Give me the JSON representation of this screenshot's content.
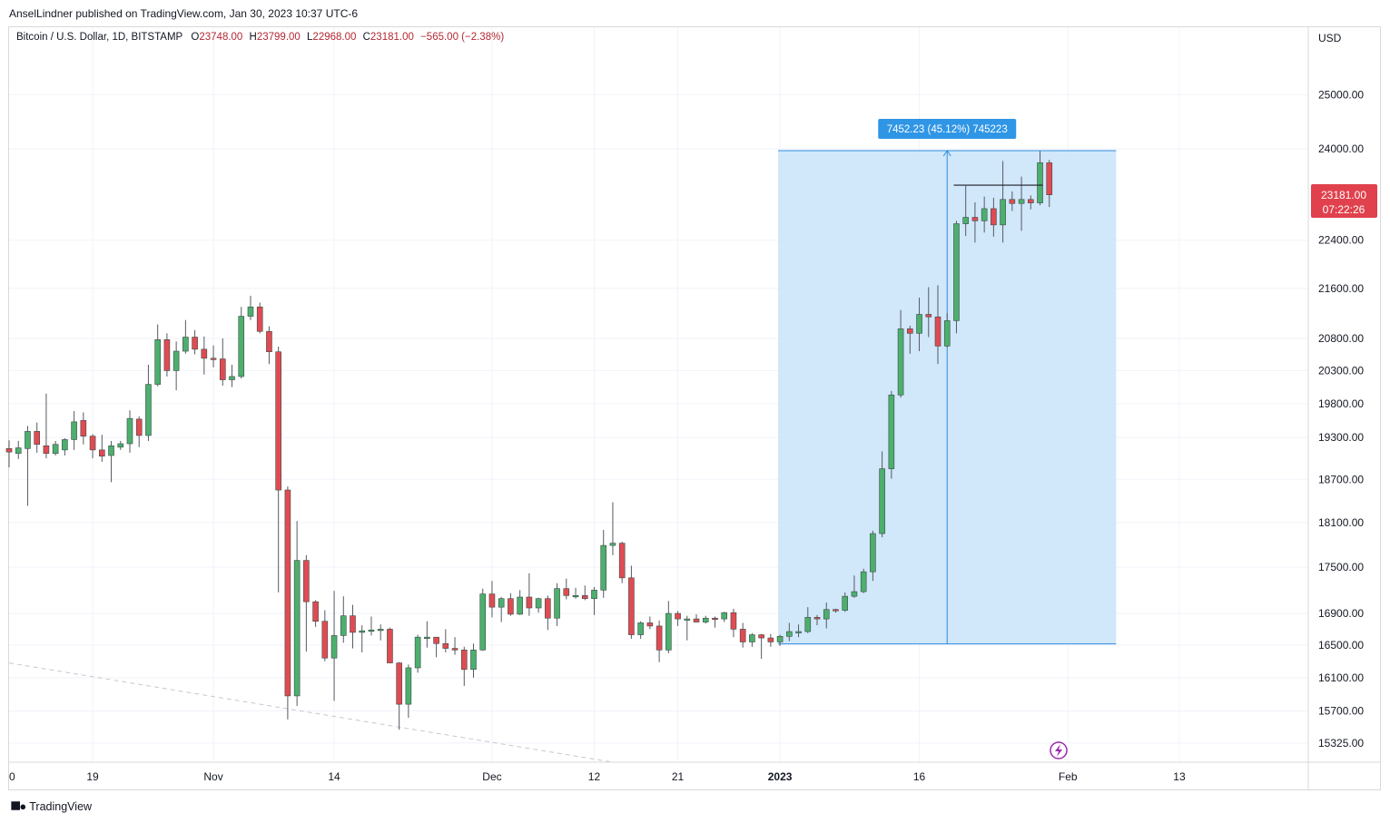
{
  "header": {
    "publisher": "AnselLindner published on TradingView.com, Jan 30, 2023 10:37 UTC-6"
  },
  "legend": {
    "symbol": "Bitcoin / U.S. Dollar, 1D, BITSTAMP",
    "open_label": "O",
    "open": "23748.00",
    "high_label": "H",
    "high": "23799.00",
    "low_label": "L",
    "low": "22968.00",
    "close_label": "C",
    "close": "23181.00",
    "change": "−565.00 (−2.38%)"
  },
  "price_axis": {
    "currency": "USD",
    "last_price": "23181.00",
    "countdown": "07:22:26"
  },
  "measure": {
    "label": "7452.23 (45.12%) 745223"
  },
  "footer": {
    "brand": "TradingView"
  },
  "colors": {
    "up": "#4caf6e",
    "down": "#e04b53",
    "wick": "#555a63",
    "measure_fill": "#cce4f9",
    "measure_line": "#2d8ce0",
    "badge": "#2f96e6",
    "price_badge": "#e0414c",
    "grid": "#f0f3fa"
  },
  "chart_data": {
    "type": "candlestick",
    "title": "Bitcoin / U.S. Dollar, 1D, BITSTAMP",
    "y_axis": {
      "label": "USD",
      "ticks": [
        15325,
        15700,
        16100,
        16500,
        16900,
        17500,
        18100,
        18700,
        19300,
        19800,
        20300,
        20800,
        21600,
        22400,
        24000,
        25000
      ],
      "tick_labels": [
        "15325.00",
        "15700.00",
        "16100.00",
        "16500.00",
        "16900.00",
        "17500.00",
        "18100.00",
        "18700.00",
        "19300.00",
        "19800.00",
        "20300.00",
        "20800.00",
        "21600.00",
        "22400.00",
        "24000.00",
        "25000.00"
      ],
      "scale": "log"
    },
    "x_axis": {
      "tick_labels": [
        "0",
        "19",
        "Nov",
        "14",
        "Dec",
        "12",
        "21",
        "2023",
        "16",
        "Feb",
        "13"
      ],
      "tick_dates": [
        "2022-10-10",
        "2022-10-19",
        "2022-11-01",
        "2022-11-14",
        "2022-12-01",
        "2022-12-12",
        "2022-12-21",
        "2023-01-01",
        "2023-01-16",
        "2023-02-01",
        "2023-02-13"
      ]
    },
    "candles": [
      {
        "d": "2022-10-10",
        "o": 19140,
        "h": 19260,
        "l": 18870,
        "c": 19090
      },
      {
        "d": "2022-10-11",
        "o": 19070,
        "h": 19250,
        "l": 18990,
        "c": 19150
      },
      {
        "d": "2022-10-12",
        "o": 19140,
        "h": 19470,
        "l": 18330,
        "c": 19390
      },
      {
        "d": "2022-10-13",
        "o": 19390,
        "h": 19520,
        "l": 19080,
        "c": 19200
      },
      {
        "d": "2022-10-14",
        "o": 19180,
        "h": 19950,
        "l": 19000,
        "c": 19070
      },
      {
        "d": "2022-10-15",
        "o": 19070,
        "h": 19250,
        "l": 19040,
        "c": 19200
      },
      {
        "d": "2022-10-16",
        "o": 19120,
        "h": 19290,
        "l": 19040,
        "c": 19270
      },
      {
        "d": "2022-10-17",
        "o": 19270,
        "h": 19690,
        "l": 19120,
        "c": 19530
      },
      {
        "d": "2022-10-18",
        "o": 19550,
        "h": 19670,
        "l": 19200,
        "c": 19320
      },
      {
        "d": "2022-10-19",
        "o": 19320,
        "h": 19350,
        "l": 19000,
        "c": 19120
      },
      {
        "d": "2022-10-20",
        "o": 19120,
        "h": 19340,
        "l": 18950,
        "c": 19030
      },
      {
        "d": "2022-10-21",
        "o": 19040,
        "h": 19250,
        "l": 18660,
        "c": 19180
      },
      {
        "d": "2022-10-22",
        "o": 19160,
        "h": 19250,
        "l": 19120,
        "c": 19210
      },
      {
        "d": "2022-10-23",
        "o": 19210,
        "h": 19700,
        "l": 19080,
        "c": 19580
      },
      {
        "d": "2022-10-24",
        "o": 19570,
        "h": 19610,
        "l": 19160,
        "c": 19330
      },
      {
        "d": "2022-10-25",
        "o": 19330,
        "h": 20390,
        "l": 19250,
        "c": 20090
      },
      {
        "d": "2022-10-26",
        "o": 20090,
        "h": 21020,
        "l": 20060,
        "c": 20780
      },
      {
        "d": "2022-10-27",
        "o": 20780,
        "h": 20880,
        "l": 20210,
        "c": 20300
      },
      {
        "d": "2022-10-28",
        "o": 20300,
        "h": 20750,
        "l": 20000,
        "c": 20600
      },
      {
        "d": "2022-10-29",
        "o": 20600,
        "h": 21090,
        "l": 20560,
        "c": 20820
      },
      {
        "d": "2022-10-30",
        "o": 20820,
        "h": 20930,
        "l": 20550,
        "c": 20630
      },
      {
        "d": "2022-10-31",
        "o": 20630,
        "h": 20830,
        "l": 20240,
        "c": 20490
      },
      {
        "d": "2022-11-01",
        "o": 20490,
        "h": 20690,
        "l": 20350,
        "c": 20480
      },
      {
        "d": "2022-11-02",
        "o": 20480,
        "h": 20800,
        "l": 20070,
        "c": 20160
      },
      {
        "d": "2022-11-03",
        "o": 20160,
        "h": 20390,
        "l": 20050,
        "c": 20210
      },
      {
        "d": "2022-11-04",
        "o": 20210,
        "h": 21300,
        "l": 20180,
        "c": 21150
      },
      {
        "d": "2022-11-05",
        "o": 21150,
        "h": 21480,
        "l": 21090,
        "c": 21300
      },
      {
        "d": "2022-11-06",
        "o": 21300,
        "h": 21370,
        "l": 20880,
        "c": 20910
      },
      {
        "d": "2022-11-07",
        "o": 20910,
        "h": 20990,
        "l": 20400,
        "c": 20590
      },
      {
        "d": "2022-11-08",
        "o": 20590,
        "h": 20670,
        "l": 17170,
        "c": 18550
      },
      {
        "d": "2022-11-09",
        "o": 18550,
        "h": 18600,
        "l": 15600,
        "c": 15880
      },
      {
        "d": "2022-11-10",
        "o": 15880,
        "h": 18120,
        "l": 15760,
        "c": 17590
      },
      {
        "d": "2022-11-11",
        "o": 17590,
        "h": 17660,
        "l": 16420,
        "c": 17050
      },
      {
        "d": "2022-11-12",
        "o": 17050,
        "h": 17070,
        "l": 16730,
        "c": 16800
      },
      {
        "d": "2022-11-13",
        "o": 16800,
        "h": 16940,
        "l": 16300,
        "c": 16340
      },
      {
        "d": "2022-11-14",
        "o": 16340,
        "h": 17190,
        "l": 15820,
        "c": 16620
      },
      {
        "d": "2022-11-15",
        "o": 16620,
        "h": 17120,
        "l": 16530,
        "c": 16870
      },
      {
        "d": "2022-11-16",
        "o": 16870,
        "h": 17010,
        "l": 16460,
        "c": 16660
      },
      {
        "d": "2022-11-17",
        "o": 16660,
        "h": 16750,
        "l": 16410,
        "c": 16680
      },
      {
        "d": "2022-11-18",
        "o": 16680,
        "h": 16860,
        "l": 16620,
        "c": 16690
      },
      {
        "d": "2022-11-19",
        "o": 16690,
        "h": 16760,
        "l": 16560,
        "c": 16700
      },
      {
        "d": "2022-11-20",
        "o": 16700,
        "h": 16720,
        "l": 16280,
        "c": 16280
      },
      {
        "d": "2022-11-21",
        "o": 16280,
        "h": 16290,
        "l": 15480,
        "c": 15780
      },
      {
        "d": "2022-11-22",
        "o": 15780,
        "h": 16260,
        "l": 15620,
        "c": 16220
      },
      {
        "d": "2022-11-23",
        "o": 16220,
        "h": 16630,
        "l": 16160,
        "c": 16600
      },
      {
        "d": "2022-11-24",
        "o": 16600,
        "h": 16800,
        "l": 16470,
        "c": 16600
      },
      {
        "d": "2022-11-25",
        "o": 16600,
        "h": 16600,
        "l": 16350,
        "c": 16520
      },
      {
        "d": "2022-11-26",
        "o": 16520,
        "h": 16700,
        "l": 16410,
        "c": 16460
      },
      {
        "d": "2022-11-27",
        "o": 16460,
        "h": 16600,
        "l": 16380,
        "c": 16440
      },
      {
        "d": "2022-11-28",
        "o": 16440,
        "h": 16480,
        "l": 16000,
        "c": 16200
      },
      {
        "d": "2022-11-29",
        "o": 16200,
        "h": 16520,
        "l": 16100,
        "c": 16440
      },
      {
        "d": "2022-11-30",
        "o": 16440,
        "h": 17220,
        "l": 16430,
        "c": 17150
      },
      {
        "d": "2022-12-01",
        "o": 17150,
        "h": 17320,
        "l": 16850,
        "c": 16980
      },
      {
        "d": "2022-12-02",
        "o": 16980,
        "h": 17110,
        "l": 16790,
        "c": 17090
      },
      {
        "d": "2022-12-03",
        "o": 17090,
        "h": 17160,
        "l": 16870,
        "c": 16890
      },
      {
        "d": "2022-12-04",
        "o": 16890,
        "h": 17200,
        "l": 16880,
        "c": 17110
      },
      {
        "d": "2022-12-05",
        "o": 17110,
        "h": 17420,
        "l": 16870,
        "c": 16970
      },
      {
        "d": "2022-12-06",
        "o": 16970,
        "h": 17100,
        "l": 16910,
        "c": 17090
      },
      {
        "d": "2022-12-07",
        "o": 17090,
        "h": 17130,
        "l": 16690,
        "c": 16840
      },
      {
        "d": "2022-12-08",
        "o": 16840,
        "h": 17290,
        "l": 16740,
        "c": 17220
      },
      {
        "d": "2022-12-09",
        "o": 17220,
        "h": 17350,
        "l": 17080,
        "c": 17130
      },
      {
        "d": "2022-12-10",
        "o": 17130,
        "h": 17230,
        "l": 17090,
        "c": 17130
      },
      {
        "d": "2022-12-11",
        "o": 17130,
        "h": 17260,
        "l": 17070,
        "c": 17090
      },
      {
        "d": "2022-12-12",
        "o": 17090,
        "h": 17240,
        "l": 16880,
        "c": 17200
      },
      {
        "d": "2022-12-13",
        "o": 17200,
        "h": 18000,
        "l": 17100,
        "c": 17790
      },
      {
        "d": "2022-12-14",
        "o": 17790,
        "h": 18380,
        "l": 17660,
        "c": 17820
      },
      {
        "d": "2022-12-15",
        "o": 17820,
        "h": 17840,
        "l": 17290,
        "c": 17360
      },
      {
        "d": "2022-12-16",
        "o": 17360,
        "h": 17520,
        "l": 16580,
        "c": 16630
      },
      {
        "d": "2022-12-17",
        "o": 16630,
        "h": 16800,
        "l": 16580,
        "c": 16780
      },
      {
        "d": "2022-12-18",
        "o": 16780,
        "h": 16860,
        "l": 16700,
        "c": 16740
      },
      {
        "d": "2022-12-19",
        "o": 16740,
        "h": 16810,
        "l": 16290,
        "c": 16440
      },
      {
        "d": "2022-12-20",
        "o": 16440,
        "h": 17060,
        "l": 16400,
        "c": 16900
      },
      {
        "d": "2022-12-21",
        "o": 16900,
        "h": 16930,
        "l": 16740,
        "c": 16830
      },
      {
        "d": "2022-12-22",
        "o": 16830,
        "h": 16870,
        "l": 16560,
        "c": 16830
      },
      {
        "d": "2022-12-23",
        "o": 16830,
        "h": 16890,
        "l": 16790,
        "c": 16790
      },
      {
        "d": "2022-12-24",
        "o": 16790,
        "h": 16870,
        "l": 16770,
        "c": 16840
      },
      {
        "d": "2022-12-25",
        "o": 16840,
        "h": 16860,
        "l": 16720,
        "c": 16830
      },
      {
        "d": "2022-12-26",
        "o": 16830,
        "h": 16920,
        "l": 16790,
        "c": 16910
      },
      {
        "d": "2022-12-27",
        "o": 16910,
        "h": 16960,
        "l": 16600,
        "c": 16700
      },
      {
        "d": "2022-12-28",
        "o": 16700,
        "h": 16780,
        "l": 16470,
        "c": 16540
      },
      {
        "d": "2022-12-29",
        "o": 16540,
        "h": 16650,
        "l": 16480,
        "c": 16630
      },
      {
        "d": "2022-12-30",
        "o": 16630,
        "h": 16640,
        "l": 16330,
        "c": 16590
      },
      {
        "d": "2022-12-31",
        "o": 16590,
        "h": 16640,
        "l": 16480,
        "c": 16540
      },
      {
        "d": "2023-01-01",
        "o": 16540,
        "h": 16630,
        "l": 16490,
        "c": 16610
      },
      {
        "d": "2023-01-02",
        "o": 16610,
        "h": 16780,
        "l": 16550,
        "c": 16670
      },
      {
        "d": "2023-01-03",
        "o": 16670,
        "h": 16760,
        "l": 16600,
        "c": 16670
      },
      {
        "d": "2023-01-04",
        "o": 16670,
        "h": 16980,
        "l": 16650,
        "c": 16850
      },
      {
        "d": "2023-01-05",
        "o": 16850,
        "h": 16880,
        "l": 16750,
        "c": 16830
      },
      {
        "d": "2023-01-06",
        "o": 16830,
        "h": 17040,
        "l": 16710,
        "c": 16950
      },
      {
        "d": "2023-01-07",
        "o": 16950,
        "h": 16960,
        "l": 16910,
        "c": 16940
      },
      {
        "d": "2023-01-08",
        "o": 16940,
        "h": 17170,
        "l": 16920,
        "c": 17120
      },
      {
        "d": "2023-01-09",
        "o": 17120,
        "h": 17390,
        "l": 17100,
        "c": 17180
      },
      {
        "d": "2023-01-10",
        "o": 17180,
        "h": 17480,
        "l": 17160,
        "c": 17440
      },
      {
        "d": "2023-01-11",
        "o": 17440,
        "h": 17990,
        "l": 17320,
        "c": 17950
      },
      {
        "d": "2023-01-12",
        "o": 17950,
        "h": 19100,
        "l": 17900,
        "c": 18850
      },
      {
        "d": "2023-01-13",
        "o": 18850,
        "h": 19990,
        "l": 18710,
        "c": 19930
      },
      {
        "d": "2023-01-14",
        "o": 19930,
        "h": 21250,
        "l": 19890,
        "c": 20950
      },
      {
        "d": "2023-01-15",
        "o": 20950,
        "h": 21000,
        "l": 20560,
        "c": 20880
      },
      {
        "d": "2023-01-16",
        "o": 20880,
        "h": 21450,
        "l": 20600,
        "c": 21180
      },
      {
        "d": "2023-01-17",
        "o": 21180,
        "h": 21620,
        "l": 20820,
        "c": 21140
      },
      {
        "d": "2023-01-18",
        "o": 21140,
        "h": 21650,
        "l": 20400,
        "c": 20680
      },
      {
        "d": "2023-01-19",
        "o": 20680,
        "h": 21200,
        "l": 20660,
        "c": 21080
      },
      {
        "d": "2023-01-20",
        "o": 21080,
        "h": 22730,
        "l": 20880,
        "c": 22680
      },
      {
        "d": "2023-01-21",
        "o": 22680,
        "h": 23340,
        "l": 22470,
        "c": 22790
      },
      {
        "d": "2023-01-22",
        "o": 22790,
        "h": 23050,
        "l": 22360,
        "c": 22730
      },
      {
        "d": "2023-01-23",
        "o": 22730,
        "h": 23150,
        "l": 22530,
        "c": 22940
      },
      {
        "d": "2023-01-24",
        "o": 22940,
        "h": 23130,
        "l": 22460,
        "c": 22660
      },
      {
        "d": "2023-01-25",
        "o": 22660,
        "h": 23780,
        "l": 22360,
        "c": 23100
      },
      {
        "d": "2023-01-26",
        "o": 23100,
        "h": 23240,
        "l": 22900,
        "c": 23030
      },
      {
        "d": "2023-01-27",
        "o": 23030,
        "h": 23500,
        "l": 22560,
        "c": 23100
      },
      {
        "d": "2023-01-28",
        "o": 23100,
        "h": 23170,
        "l": 22930,
        "c": 23040
      },
      {
        "d": "2023-01-29",
        "o": 23040,
        "h": 23960,
        "l": 23000,
        "c": 23750
      },
      {
        "d": "2023-01-30",
        "o": 23748,
        "h": 23799,
        "l": 22968,
        "c": 23181
      }
    ],
    "measure_box": {
      "from_date": "2023-01-01",
      "to_date": "2023-02-06",
      "low": 16515,
      "high": 23967,
      "change": "7452.23",
      "percent": "45.12%"
    },
    "horizontal_line": {
      "from_date": "2023-01-20",
      "to_date": "2023-01-29",
      "price": 23350
    },
    "trendline_dashed": {
      "from": {
        "d": "2022-10-10",
        "p": 16280
      },
      "to": {
        "d": "2022-12-14",
        "p": 15200
      }
    }
  }
}
